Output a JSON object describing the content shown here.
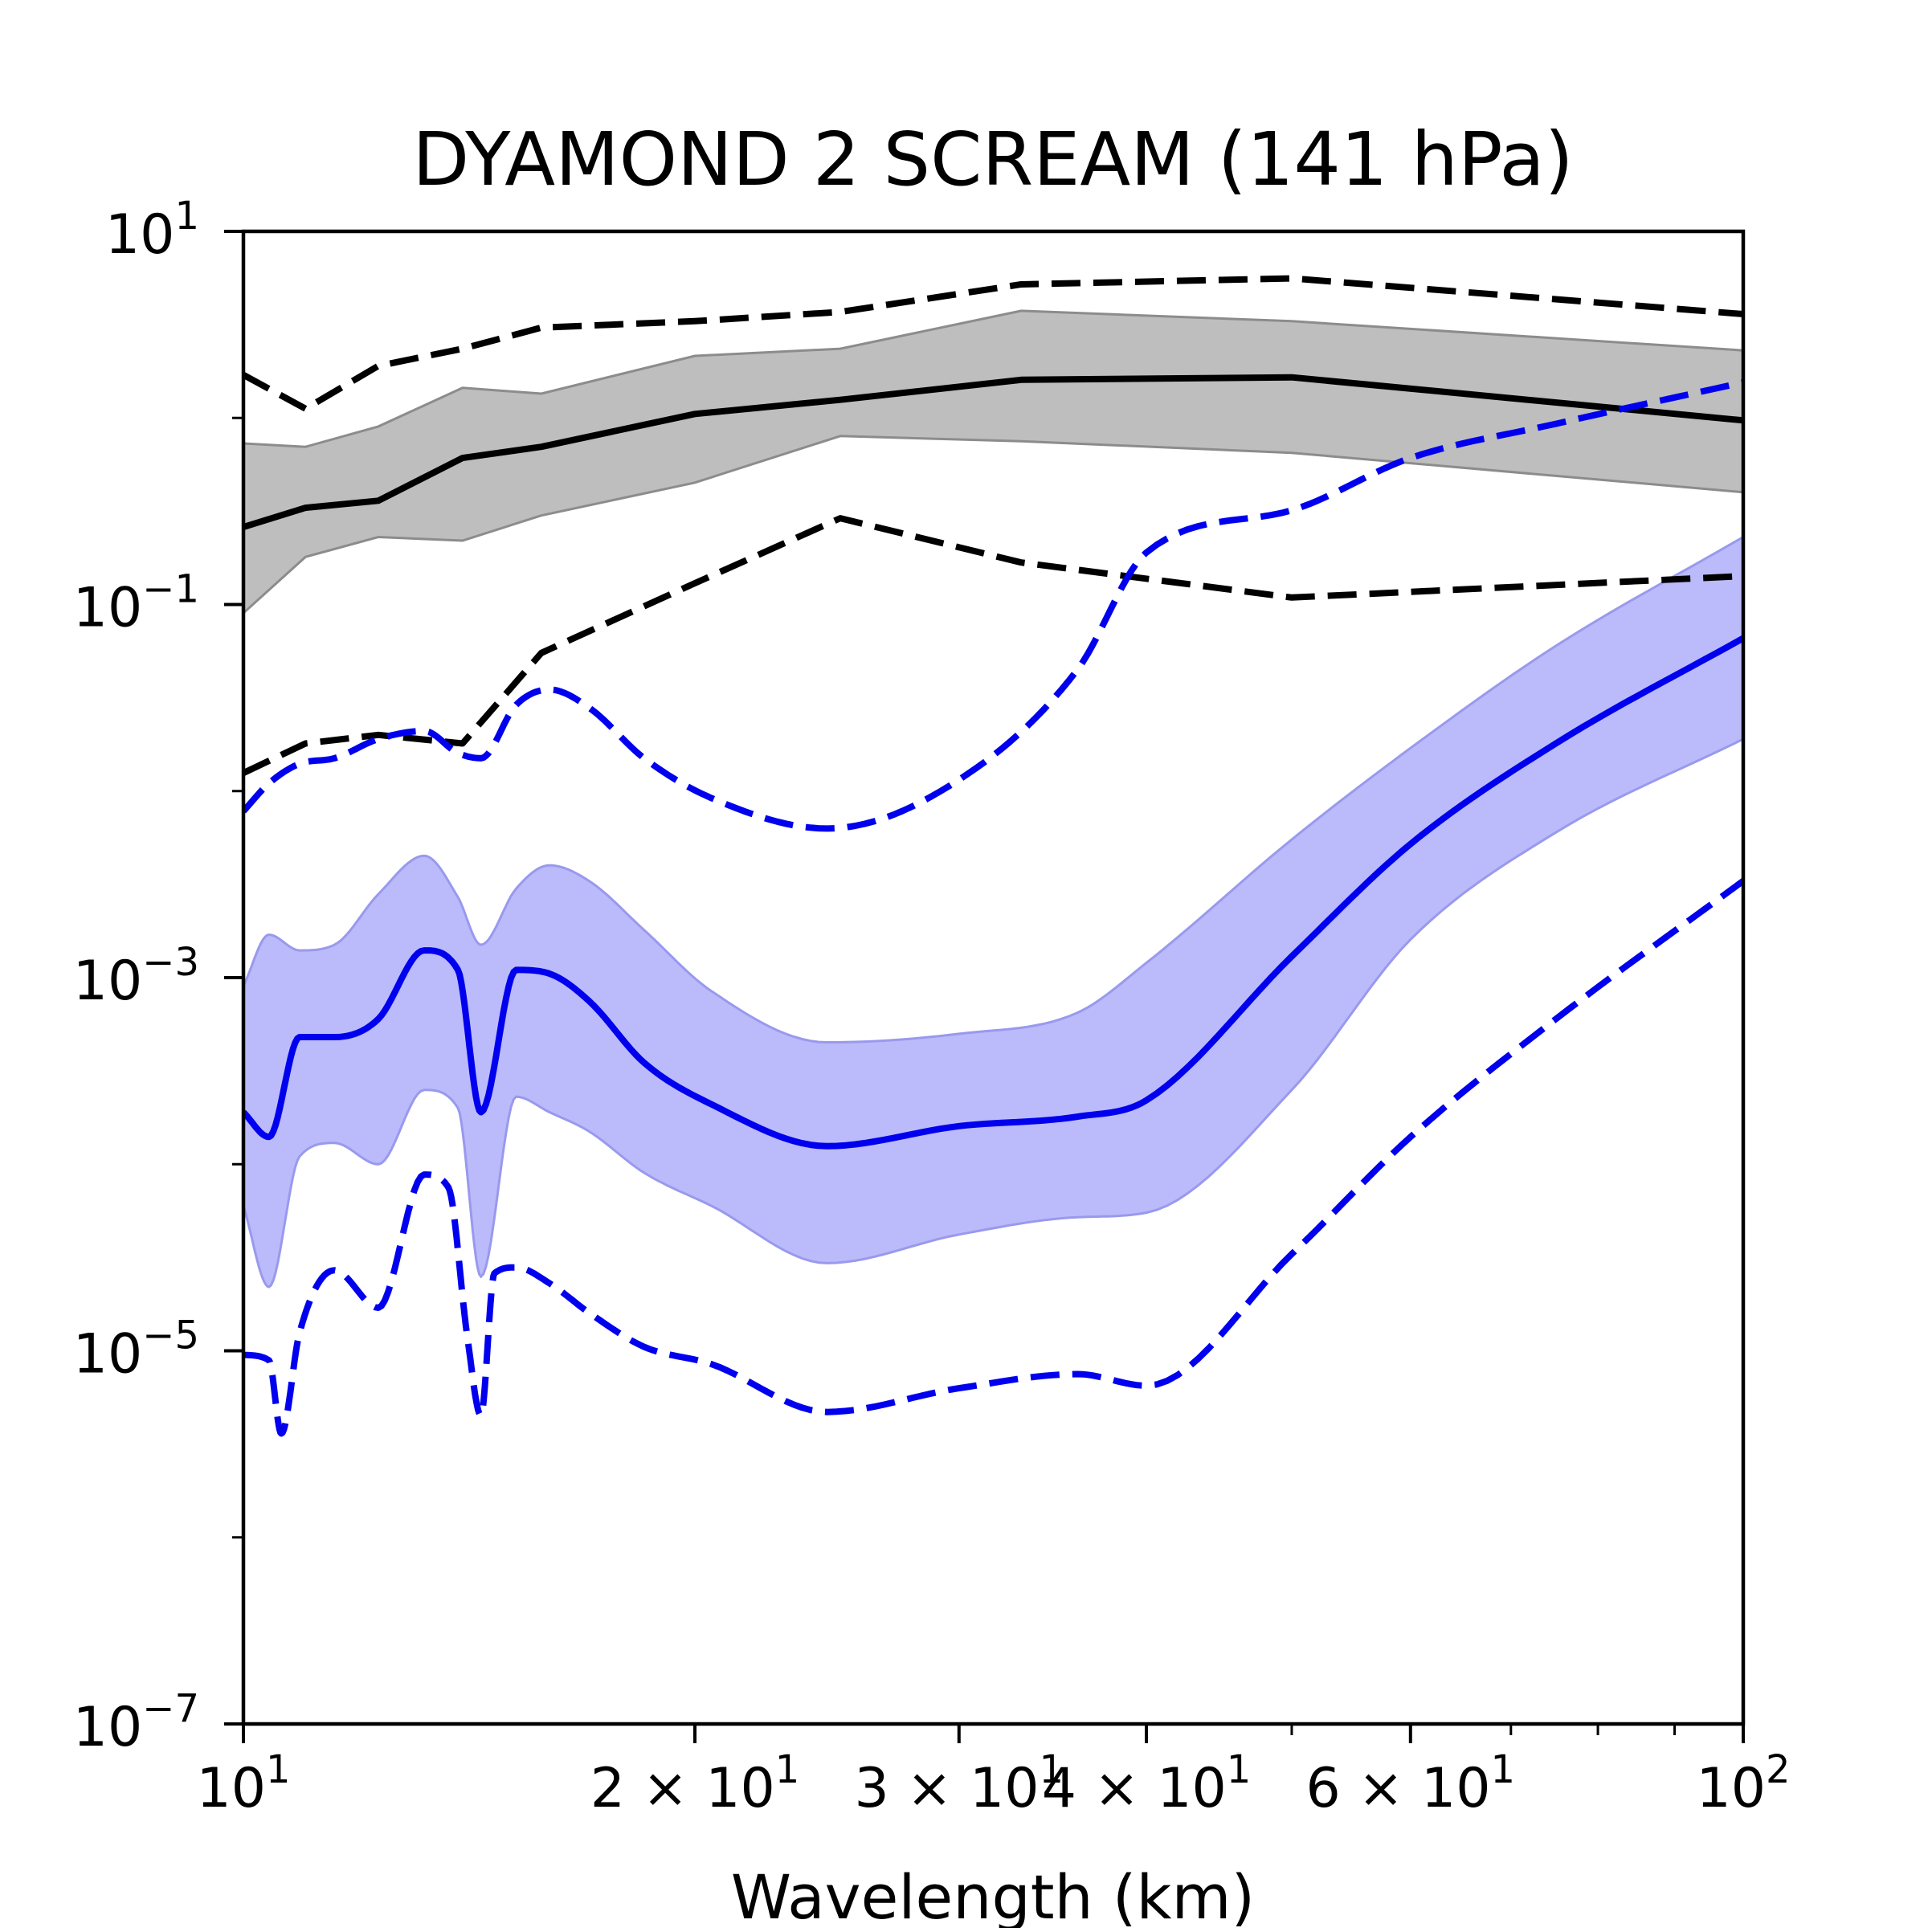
{
  "chart_data": {
    "type": "line",
    "title": "DYAMOND 2 SCREAM (141 hPa)",
    "xlabel": "Wavelength (km)",
    "ylabel": "",
    "xscale": "log",
    "yscale": "log",
    "xlim": [
      10,
      100
    ],
    "ylim": [
      1e-07,
      10
    ],
    "grid": false,
    "x_ticks": [
      {
        "value": 10,
        "mant": "",
        "base": "10",
        "exp": "1"
      },
      {
        "value": 20,
        "mant": "2 × ",
        "base": "10",
        "exp": "1"
      },
      {
        "value": 30,
        "mant": "3 × ",
        "base": "10",
        "exp": "1"
      },
      {
        "value": 40,
        "mant": "4 × ",
        "base": "10",
        "exp": "1"
      },
      {
        "value": 60,
        "mant": "6 × ",
        "base": "10",
        "exp": "1"
      },
      {
        "value": 100,
        "mant": "",
        "base": "10",
        "exp": "2"
      }
    ],
    "y_ticks": [
      {
        "value": 10,
        "base": "10",
        "exp": "1"
      },
      {
        "value": 0.1,
        "base": "10",
        "exp": "−1"
      },
      {
        "value": 0.001,
        "base": "10",
        "exp": "−3"
      },
      {
        "value": 1e-05,
        "base": "10",
        "exp": "−5"
      },
      {
        "value": 1e-07,
        "base": "10",
        "exp": "−7"
      }
    ],
    "bands": [
      {
        "color": "#bebebe",
        "edge": "#8c8c8c",
        "x": [
          10,
          11,
          12.3,
          14,
          15.8,
          20,
          25,
          33,
          50,
          100
        ],
        "low": [
          0.09,
          0.18,
          0.23,
          0.22,
          0.3,
          0.45,
          0.8,
          0.75,
          0.65,
          0.4
        ],
        "high": [
          0.73,
          0.7,
          0.9,
          1.45,
          1.35,
          2.15,
          2.35,
          3.75,
          3.3,
          2.3
        ]
      },
      {
        "color": "#bbbbfb",
        "edge": "#9999ee",
        "x": [
          10,
          10.4,
          10.9,
          11.5,
          12.3,
          13.2,
          13.9,
          14.4,
          15.2,
          16,
          17,
          18.5,
          20.5,
          24.5,
          30,
          36,
          40,
          50,
          60,
          75,
          100
        ],
        "low": [
          6e-05,
          2.2e-05,
          0.00011,
          0.00013,
          0.0001,
          0.00025,
          0.0002,
          2.5e-05,
          0.00023,
          0.00019,
          0.00015,
          9e-05,
          6e-05,
          2.95e-05,
          4.2e-05,
          5.2e-05,
          5.5e-05,
          0.00025,
          0.0016,
          0.006,
          0.019
        ],
        "high": [
          0.0009,
          0.0017,
          0.0014,
          0.0015,
          0.0028,
          0.0045,
          0.0027,
          0.0015,
          0.003,
          0.004,
          0.0033,
          0.0018,
          0.00085,
          0.00045,
          0.0005,
          0.00065,
          0.0012,
          0.0055,
          0.017,
          0.06,
          0.23
        ]
      }
    ],
    "series": [
      {
        "color": "#000000",
        "dash": "solid",
        "x": [
          10,
          11,
          12.3,
          14,
          15.8,
          20,
          25,
          33,
          50,
          100
        ],
        "y": [
          0.26,
          0.33,
          0.36,
          0.61,
          0.7,
          1.05,
          1.25,
          1.6,
          1.65,
          0.97
        ]
      },
      {
        "color": "#000000",
        "dash": "dashed",
        "x": [
          10,
          11,
          12.3,
          14,
          15.8,
          20,
          25,
          33,
          50,
          100
        ],
        "y": [
          1.7,
          1.12,
          1.9,
          2.35,
          3.05,
          3.3,
          3.7,
          5.2,
          5.6,
          3.6
        ]
      },
      {
        "color": "#000000",
        "dash": "dashed",
        "x": [
          10,
          11,
          12.3,
          14,
          15.8,
          20,
          25,
          33,
          50,
          100
        ],
        "y": [
          0.0125,
          0.018,
          0.02,
          0.018,
          0.055,
          0.13,
          0.29,
          0.168,
          0.109,
          0.142
        ]
      },
      {
        "color": "#0000ee",
        "dash": "solid",
        "x": [
          10,
          10.4,
          10.9,
          11.5,
          12.3,
          13.2,
          13.9,
          14.4,
          15.2,
          16,
          17,
          18.5,
          20.5,
          24.5,
          30,
          36,
          40,
          50,
          60,
          75,
          100
        ],
        "y": [
          0.00019,
          0.00014,
          0.00048,
          0.00048,
          0.0006,
          0.0014,
          0.0011,
          0.00019,
          0.0011,
          0.00105,
          0.00075,
          0.00035,
          0.00021,
          0.000125,
          0.00016,
          0.00018,
          0.00022,
          0.0013,
          0.0052,
          0.018,
          0.066
        ]
      },
      {
        "color": "#0000ee",
        "dash": "dashed",
        "x": [
          10,
          10.4,
          10.9,
          11.5,
          12.3,
          13.2,
          13.9,
          14.4,
          15.2,
          16,
          17,
          18.5,
          20.5,
          24.5,
          30,
          36,
          40,
          50,
          60,
          75,
          100
        ],
        "y": [
          0.0078,
          0.011,
          0.014,
          0.015,
          0.019,
          0.021,
          0.016,
          0.015,
          0.029,
          0.035,
          0.028,
          0.015,
          0.0092,
          0.0063,
          0.0115,
          0.045,
          0.19,
          0.32,
          0.61,
          0.93,
          1.55
        ]
      },
      {
        "color": "#0000ee",
        "dash": "dashed",
        "x": [
          10,
          10.4,
          10.6,
          10.9,
          11.5,
          12.3,
          13.2,
          13.7,
          14.1,
          14.4,
          14.7,
          15.2,
          16,
          17,
          18.5,
          20.5,
          24.5,
          30,
          36,
          40,
          50,
          60,
          75,
          100
        ],
        "y": [
          9.5e-06,
          8.9e-06,
          3.6e-06,
          1.25e-05,
          2.7e-05,
          1.7e-05,
          8.8e-05,
          7.5e-05,
          1.2e-05,
          4.5e-06,
          2.6e-05,
          2.8e-05,
          2.3e-05,
          1.6e-05,
          1.05e-05,
          8.5e-06,
          4.7e-06,
          6.3e-06,
          7.5e-06,
          6.5e-06,
          3.3e-05,
          0.00014,
          0.0006,
          0.0033
        ]
      }
    ]
  }
}
